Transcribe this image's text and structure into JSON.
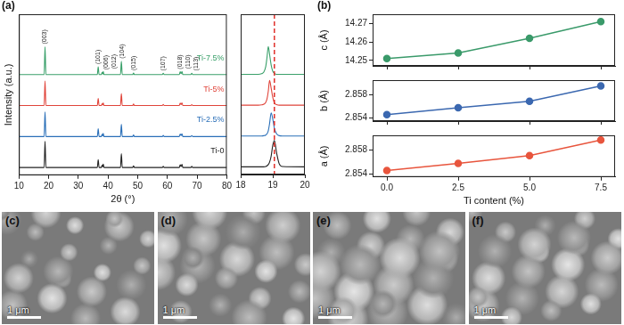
{
  "chart_data": [
    {
      "type": "line",
      "panel": "(a)",
      "xlabel": "2θ (°)",
      "ylabel": "Intensity (a.u.)",
      "x": [
        10,
        18.5,
        18.8,
        19.1,
        36.4,
        36.7,
        37.0,
        37.75,
        38.0,
        38.2,
        38.4,
        38.65,
        44.2,
        44.5,
        44.8,
        48.3,
        48.6,
        48.9,
        58.3,
        58.6,
        58.9,
        64.0,
        64.3,
        64.6,
        64.9,
        65.2,
        67.9,
        68.2,
        68.5,
        80
      ],
      "xlim": [
        10,
        80
      ],
      "xticks": [
        10,
        20,
        30,
        40,
        50,
        60,
        70,
        80
      ],
      "ylim": [
        -0.2,
        5.0
      ],
      "tick_labels": "x",
      "grid": false,
      "series": [
        {
          "name": "Ti-0",
          "color": "#222222",
          "values": [
            0.05,
            0.05,
            0.9,
            0.05,
            0.05,
            0.3,
            0.05,
            0.05,
            0.12,
            0.07,
            0.16,
            0.05,
            0.05,
            0.5,
            0.05,
            0.05,
            0.1,
            0.05,
            0.05,
            0.09,
            0.05,
            0.05,
            0.14,
            0.08,
            0.15,
            0.05,
            0.05,
            0.09,
            0.05,
            0.05
          ]
        },
        {
          "name": "Ti-2.5%",
          "color": "#2a6fb8",
          "values": [
            1.05,
            1.05,
            1.85,
            1.05,
            1.05,
            1.3,
            1.05,
            1.05,
            1.12,
            1.07,
            1.15,
            1.05,
            1.05,
            1.45,
            1.05,
            1.05,
            1.1,
            1.05,
            1.05,
            1.09,
            1.05,
            1.05,
            1.13,
            1.08,
            1.14,
            1.05,
            1.05,
            1.08,
            1.05,
            1.05
          ]
        },
        {
          "name": "Ti-5%",
          "color": "#e0443a",
          "values": [
            2.05,
            2.05,
            2.85,
            2.05,
            2.05,
            2.28,
            2.05,
            2.05,
            2.11,
            2.07,
            2.14,
            2.05,
            2.05,
            2.44,
            2.05,
            2.05,
            2.1,
            2.05,
            2.05,
            2.09,
            2.05,
            2.05,
            2.13,
            2.08,
            2.14,
            2.05,
            2.05,
            2.08,
            2.05,
            2.05
          ]
        },
        {
          "name": "Ti-7.5%",
          "color": "#3aa06a",
          "values": [
            3.05,
            3.05,
            3.95,
            3.05,
            3.05,
            3.3,
            3.05,
            3.05,
            3.12,
            3.07,
            3.15,
            3.05,
            3.05,
            3.48,
            3.05,
            3.05,
            3.1,
            3.05,
            3.05,
            3.09,
            3.05,
            3.05,
            3.14,
            3.08,
            3.15,
            3.05,
            3.05,
            3.09,
            3.05,
            3.05
          ]
        }
      ],
      "annotations": [
        {
          "text": "(003)",
          "x": 18.8
        },
        {
          "text": "(101)",
          "x": 36.7
        },
        {
          "text": "(006)",
          "x": 38.0
        },
        {
          "text": "(012)",
          "x": 38.4
        },
        {
          "text": "(104)",
          "x": 44.5
        },
        {
          "text": "(015)",
          "x": 48.6
        },
        {
          "text": "(107)",
          "x": 58.6
        },
        {
          "text": "(018)",
          "x": 64.3
        },
        {
          "text": "(110)",
          "x": 64.9
        },
        {
          "text": "(113)",
          "x": 68.2
        }
      ]
    },
    {
      "type": "line",
      "x": [
        18,
        18.55,
        18.65,
        18.72,
        18.78,
        18.82,
        18.86,
        18.9,
        18.95,
        19.0,
        19.05,
        19.12,
        19.2,
        19.3,
        20
      ],
      "xlim": [
        18,
        20
      ],
      "xticks": [
        18,
        19,
        20
      ],
      "ylim": [
        -0.2,
        5.0
      ],
      "tick_labels": "x",
      "grid": false,
      "series": [
        {
          "color": "#222222",
          "values": [
            0.05,
            0.05,
            0.05,
            0.05,
            0.06,
            0.08,
            0.12,
            0.2,
            0.4,
            0.75,
            0.9,
            0.5,
            0.15,
            0.06,
            0.05
          ]
        },
        {
          "color": "#2a6fb8",
          "values": [
            1.05,
            1.05,
            1.05,
            1.06,
            1.08,
            1.12,
            1.22,
            1.45,
            1.8,
            1.6,
            1.3,
            1.12,
            1.06,
            1.05,
            1.05
          ]
        },
        {
          "color": "#e0443a",
          "values": [
            2.05,
            2.05,
            2.06,
            2.08,
            2.14,
            2.25,
            2.5,
            2.85,
            2.6,
            2.3,
            2.12,
            2.07,
            2.05,
            2.05,
            2.05
          ]
        },
        {
          "color": "#3aa06a",
          "values": [
            3.05,
            3.05,
            3.07,
            3.12,
            3.3,
            3.6,
            3.95,
            3.7,
            3.35,
            3.15,
            3.08,
            3.05,
            3.05,
            3.05,
            3.05
          ]
        }
      ],
      "vline": {
        "x": 19.05,
        "color": "#e0302a",
        "line_style": "dashed"
      }
    },
    {
      "type": "line",
      "panel": "(b)",
      "ylabel": "c (Å)",
      "x": [
        0,
        2.5,
        5,
        7.5
      ],
      "xlim": [
        -0.5,
        8
      ],
      "xticks": [
        {
          "value": 0,
          "label": "0.0"
        },
        2.5,
        {
          "value": 5,
          "label": "5.0"
        },
        7.5
      ],
      "ylim": [
        14.247,
        14.275
      ],
      "yticks": [
        14.25,
        14.26,
        14.27
      ],
      "tick_labels": "y",
      "grid": false,
      "marker": "circle",
      "line_style": "solid",
      "series": [
        {
          "color": "#3a9a6a",
          "values": [
            14.251,
            14.254,
            14.262,
            14.271
          ]
        }
      ]
    },
    {
      "type": "line",
      "ylabel": "b (Å)",
      "x": [
        0,
        2.5,
        5,
        7.5
      ],
      "xlim": [
        -0.5,
        8
      ],
      "xticks": [
        {
          "value": 0,
          "label": "0.0"
        },
        2.5,
        {
          "value": 5,
          "label": "5.0"
        },
        7.5
      ],
      "ylim": [
        2.8535,
        2.8605
      ],
      "yticks": [
        2.854,
        2.858
      ],
      "tick_labels": "y",
      "grid": false,
      "marker": "circle",
      "line_style": "solid",
      "series": [
        {
          "color": "#3b68b0",
          "values": [
            2.8546,
            2.8558,
            2.8569,
            2.8595
          ]
        }
      ]
    },
    {
      "type": "line",
      "xlabel": "Ti content (%)",
      "ylabel": "a (Å)",
      "x": [
        0,
        2.5,
        5,
        7.5
      ],
      "xlim": [
        -0.5,
        8
      ],
      "xticks": [
        {
          "value": 0,
          "label": "0.0"
        },
        2.5,
        {
          "value": 5,
          "label": "5.0"
        },
        7.5
      ],
      "ylim": [
        2.8535,
        2.8605
      ],
      "yticks": [
        2.854,
        2.858
      ],
      "grid": false,
      "marker": "circle",
      "line_style": "solid",
      "series": [
        {
          "color": "#e8553d",
          "values": [
            2.8546,
            2.8558,
            2.8571,
            2.8597
          ]
        }
      ]
    }
  ],
  "sem_images": [
    {
      "label": "(c)",
      "scale_bar": "1 μm"
    },
    {
      "label": "(d)",
      "scale_bar": "1 μm"
    },
    {
      "label": "(e)",
      "scale_bar": "1 μm"
    },
    {
      "label": "(f)",
      "scale_bar": "1 μm"
    }
  ]
}
